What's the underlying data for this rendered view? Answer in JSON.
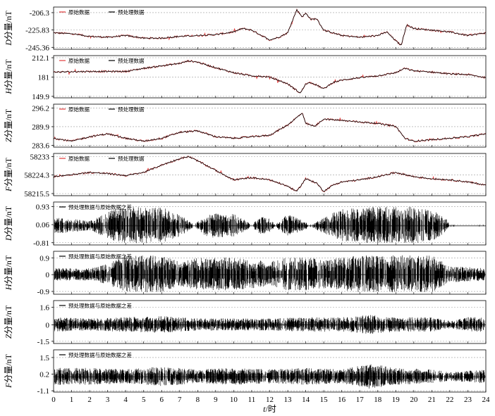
{
  "chart_data": [
    {
      "type": "line",
      "ylabel": "D分量/nT",
      "yticks": [
        -206.3,
        -225.83,
        -245.36
      ],
      "ylim": [
        -247.5,
        -200.0
      ],
      "grid": "horizontal dashed",
      "legend": [
        {
          "name": "原始数据",
          "color": "#e23b3b"
        },
        {
          "name": "预处理数据",
          "color": "#000000"
        }
      ],
      "series": [
        {
          "name": "原始数据",
          "color": "#e23b3b",
          "x": [
            0,
            1,
            2,
            3,
            4,
            5,
            6,
            7,
            8,
            9,
            10,
            10.5,
            11,
            12,
            12.5,
            13,
            13.5,
            13.8,
            14,
            14.3,
            14.6,
            15,
            16,
            17,
            18,
            18.5,
            19,
            19.3,
            19.6,
            20,
            21,
            22,
            23,
            24
          ],
          "values": [
            -229,
            -230,
            -233,
            -234,
            -232,
            -235,
            -235,
            -233,
            -232,
            -231,
            -228,
            -224,
            -226,
            -237,
            -234,
            -229,
            -203,
            -211,
            -207,
            -214,
            -213,
            -226,
            -232,
            -234,
            -232,
            -228,
            -238,
            -243,
            -220,
            -224,
            -226,
            -228,
            -232,
            -229
          ]
        },
        {
          "name": "预处理数据",
          "color": "#000000",
          "x": [
            0,
            1,
            2,
            3,
            4,
            5,
            6,
            7,
            8,
            9,
            10,
            10.5,
            11,
            12,
            12.5,
            13,
            13.5,
            13.8,
            14,
            14.3,
            14.6,
            15,
            16,
            17,
            18,
            18.5,
            19,
            19.3,
            19.6,
            20,
            21,
            22,
            23,
            24
          ],
          "values": [
            -229,
            -230,
            -233,
            -234,
            -232,
            -235,
            -235,
            -233,
            -232,
            -231,
            -228,
            -224,
            -226,
            -237,
            -234,
            -229,
            -203,
            -211,
            -207,
            -214,
            -213,
            -226,
            -232,
            -234,
            -232,
            -228,
            -238,
            -243,
            -220,
            -224,
            -226,
            -228,
            -232,
            -229
          ]
        }
      ]
    },
    {
      "type": "line",
      "ylabel": "H分量/nT",
      "yticks": [
        212.1,
        181.0,
        149.9
      ],
      "ylim": [
        147.5,
        215.5
      ],
      "grid": "horizontal dashed",
      "legend": [
        {
          "name": "原始数据",
          "color": "#e23b3b"
        },
        {
          "name": "预处理数据",
          "color": "#000000"
        }
      ],
      "series": [
        {
          "name": "原始数据",
          "color": "#e23b3b",
          "x": [
            0,
            2,
            4,
            5,
            6,
            7,
            7.5,
            8,
            9,
            10,
            11,
            12,
            13,
            13.7,
            14,
            14.3,
            14.6,
            15,
            15.5,
            16,
            17,
            18,
            19,
            19.5,
            20,
            21,
            22,
            23,
            24
          ],
          "values": [
            189,
            190,
            190,
            195,
            199,
            203,
            207,
            205,
            196,
            188,
            183,
            181,
            170,
            155,
            170,
            172,
            168,
            162,
            172,
            176,
            180,
            183,
            188,
            195,
            191,
            189,
            186,
            185,
            180
          ]
        },
        {
          "name": "预处理数据",
          "color": "#000000",
          "x": [
            0,
            2,
            4,
            5,
            6,
            7,
            7.5,
            8,
            9,
            10,
            11,
            12,
            13,
            13.7,
            14,
            14.3,
            14.6,
            15,
            15.5,
            16,
            17,
            18,
            19,
            19.5,
            20,
            21,
            22,
            23,
            24
          ],
          "values": [
            189,
            190,
            190,
            195,
            199,
            203,
            207,
            205,
            196,
            188,
            183,
            181,
            170,
            155,
            170,
            172,
            168,
            162,
            172,
            176,
            180,
            183,
            188,
            195,
            191,
            189,
            186,
            185,
            180
          ]
        }
      ]
    },
    {
      "type": "line",
      "ylabel": "Z分量/nT",
      "yticks": [
        296.2,
        289.9,
        283.6
      ],
      "ylim": [
        283.0,
        297.5
      ],
      "grid": "horizontal dashed",
      "legend": [
        {
          "name": "原始数据",
          "color": "#e23b3b"
        },
        {
          "name": "预处理数据",
          "color": "#000000"
        }
      ],
      "series": [
        {
          "name": "原始数据",
          "color": "#e23b3b",
          "x": [
            0,
            1,
            2,
            3,
            4,
            5,
            6,
            7,
            8,
            9,
            10,
            11,
            12,
            13,
            13.5,
            13.8,
            14,
            14.5,
            15,
            16,
            17,
            18,
            19,
            19.5,
            20,
            21,
            22,
            23,
            24
          ],
          "values": [
            286.0,
            285.0,
            286.5,
            287.5,
            286.0,
            285.0,
            286.0,
            288.0,
            288.5,
            286.5,
            286.0,
            286.5,
            287.0,
            290.5,
            293.0,
            294.5,
            291.0,
            290.0,
            292.5,
            292.0,
            291.5,
            291.0,
            290.0,
            286.0,
            285.0,
            285.5,
            286.0,
            286.5,
            287.5
          ]
        },
        {
          "name": "预处理数据",
          "color": "#000000",
          "x": [
            0,
            1,
            2,
            3,
            4,
            5,
            6,
            7,
            8,
            9,
            10,
            11,
            12,
            13,
            13.5,
            13.8,
            14,
            14.5,
            15,
            16,
            17,
            18,
            19,
            19.5,
            20,
            21,
            22,
            23,
            24
          ],
          "values": [
            286.0,
            285.0,
            286.5,
            287.5,
            286.0,
            285.0,
            286.0,
            288.0,
            288.5,
            286.5,
            286.0,
            286.5,
            287.0,
            290.5,
            293.0,
            294.5,
            291.0,
            290.0,
            292.5,
            292.0,
            291.5,
            291.0,
            290.0,
            286.0,
            285.0,
            285.5,
            286.0,
            286.5,
            287.5
          ]
        }
      ]
    },
    {
      "type": "line",
      "ylabel": "F分量/nT",
      "yticks": [
        58233.0,
        58224.3,
        58215.5
      ],
      "ylim": [
        58214.5,
        58234.5
      ],
      "grid": "horizontal dashed",
      "legend": [
        {
          "name": "原始数据",
          "color": "#e23b3b"
        },
        {
          "name": "预处理数据",
          "color": "#000000"
        }
      ],
      "series": [
        {
          "name": "原始数据",
          "color": "#e23b3b",
          "x": [
            0,
            1,
            2,
            3,
            4,
            5,
            6,
            7,
            7.5,
            8,
            9,
            10,
            11,
            12,
            13,
            13.5,
            14,
            14.3,
            14.6,
            15,
            15.5,
            16,
            17,
            18,
            19,
            20,
            21,
            22,
            23,
            24
          ],
          "values": [
            58223.5,
            58224.5,
            58225.5,
            58225.0,
            58224.0,
            58225.5,
            58229.0,
            58232.0,
            58233.0,
            58231.0,
            58226.5,
            58222.0,
            58223.0,
            58222.0,
            58219.0,
            58216.5,
            58222.5,
            58221.5,
            58220.5,
            58216.5,
            58219.5,
            58221.0,
            58222.0,
            58223.5,
            58225.5,
            58223.5,
            58222.5,
            58222.0,
            58221.0,
            58219.5
          ]
        },
        {
          "name": "预处理数据",
          "color": "#000000",
          "x": [
            0,
            1,
            2,
            3,
            4,
            5,
            6,
            7,
            7.5,
            8,
            9,
            10,
            11,
            12,
            13,
            13.5,
            14,
            14.3,
            14.6,
            15,
            15.5,
            16,
            17,
            18,
            19,
            20,
            21,
            22,
            23,
            24
          ],
          "values": [
            58223.5,
            58224.5,
            58225.5,
            58225.0,
            58224.0,
            58225.5,
            58229.0,
            58232.0,
            58233.0,
            58231.0,
            58226.5,
            58222.0,
            58223.0,
            58222.0,
            58219.0,
            58216.5,
            58222.5,
            58221.5,
            58220.5,
            58216.5,
            58219.5,
            58221.0,
            58222.0,
            58223.5,
            58225.5,
            58223.5,
            58222.5,
            58222.0,
            58221.0,
            58219.5
          ]
        }
      ]
    },
    {
      "type": "bar",
      "ylabel": "D分量/nT",
      "yticks": [
        0.93,
        0.06,
        -0.81
      ],
      "ylim": [
        -0.92,
        1.15
      ],
      "grid": "horizontal dashed",
      "legend": [
        {
          "name": "预处理数据与原始数据之差",
          "color": "#000000"
        }
      ],
      "amplitude_by_hour": [
        [
          0,
          0.35
        ],
        [
          1,
          0.3
        ],
        [
          2,
          0.2
        ],
        [
          3.5,
          0.75
        ],
        [
          4,
          0.8
        ],
        [
          5,
          0.8
        ],
        [
          6,
          0.8
        ],
        [
          7,
          0.5
        ],
        [
          7.8,
          0.05
        ],
        [
          8.5,
          0.5
        ],
        [
          9,
          0.55
        ],
        [
          10,
          0.5
        ],
        [
          10.5,
          0.3
        ],
        [
          11,
          0.05
        ],
        [
          11.5,
          0.4
        ],
        [
          12,
          0.3
        ],
        [
          12.3,
          0.05
        ],
        [
          13,
          0.5
        ],
        [
          13.6,
          0.3
        ],
        [
          14.3,
          0.05
        ],
        [
          15.5,
          0.55
        ],
        [
          16,
          0.7
        ],
        [
          17,
          0.75
        ],
        [
          18,
          0.8
        ],
        [
          19,
          0.8
        ],
        [
          20,
          0.8
        ],
        [
          21,
          0.7
        ],
        [
          21.8,
          0.3
        ],
        [
          22,
          0.05
        ],
        [
          24,
          0.05
        ]
      ]
    },
    {
      "type": "bar",
      "ylabel": "H分量/nT",
      "yticks": [
        0.9,
        0.0,
        -0.9
      ],
      "ylim": [
        -1.05,
        1.25
      ],
      "grid": "horizontal dashed",
      "legend": [
        {
          "name": "预处理数据与原始数据之差",
          "color": "#000000"
        }
      ],
      "amplitude_by_hour": [
        [
          0,
          0.3
        ],
        [
          2,
          0.3
        ],
        [
          3,
          0.5
        ],
        [
          4,
          0.9
        ],
        [
          5,
          0.9
        ],
        [
          6,
          0.9
        ],
        [
          7,
          0.6
        ],
        [
          8,
          0.8
        ],
        [
          9,
          0.8
        ],
        [
          10,
          0.8
        ],
        [
          11,
          0.7
        ],
        [
          12,
          0.6
        ],
        [
          13,
          0.8
        ],
        [
          14,
          0.8
        ],
        [
          15,
          0.7
        ],
        [
          16,
          0.8
        ],
        [
          17,
          0.9
        ],
        [
          18,
          0.9
        ],
        [
          19,
          0.9
        ],
        [
          20,
          0.9
        ],
        [
          21,
          0.9
        ],
        [
          22,
          0.4
        ],
        [
          23,
          0.35
        ],
        [
          24,
          0.3
        ]
      ]
    },
    {
      "type": "bar",
      "ylabel": "Z分量/nT",
      "yticks": [
        1.6,
        0.0,
        -1.5
      ],
      "ylim": [
        -1.7,
        2.2
      ],
      "grid": "horizontal dashed",
      "legend": [
        {
          "name": "预处理数据与原始数据之差",
          "color": "#000000"
        }
      ],
      "amplitude_by_hour": [
        [
          0,
          0.6
        ],
        [
          2,
          0.5
        ],
        [
          4,
          0.6
        ],
        [
          6,
          0.7
        ],
        [
          8,
          0.5
        ],
        [
          10,
          0.5
        ],
        [
          12,
          0.5
        ],
        [
          14,
          0.6
        ],
        [
          16,
          0.6
        ],
        [
          17.5,
          0.8
        ],
        [
          19,
          0.6
        ],
        [
          21,
          0.6
        ],
        [
          22,
          0.3
        ],
        [
          23,
          0.6
        ],
        [
          24,
          0.6
        ]
      ]
    },
    {
      "type": "bar",
      "ylabel": "F分量/nT",
      "yticks": [
        1.5,
        0.2,
        -1.1
      ],
      "ylim": [
        -1.2,
        2.1
      ],
      "grid": "horizontal dashed",
      "legend": [
        {
          "name": "预处理数据与原始数据之差",
          "color": "#000000"
        }
      ],
      "amplitude_by_hour": [
        [
          0,
          0.6
        ],
        [
          2,
          0.6
        ],
        [
          4,
          0.5
        ],
        [
          6,
          0.7
        ],
        [
          8,
          0.5
        ],
        [
          10,
          0.6
        ],
        [
          12,
          0.5
        ],
        [
          14,
          0.6
        ],
        [
          16,
          0.5
        ],
        [
          17.5,
          0.9
        ],
        [
          19,
          0.6
        ],
        [
          21,
          0.5
        ],
        [
          22,
          0.3
        ],
        [
          24,
          0.5
        ]
      ]
    }
  ],
  "x_axis": {
    "label_italic": "t",
    "label_rest": "/时",
    "ticks": [
      0,
      1,
      2,
      3,
      4,
      5,
      6,
      7,
      8,
      9,
      10,
      11,
      12,
      13,
      14,
      15,
      16,
      17,
      18,
      19,
      20,
      21,
      22,
      23,
      24
    ],
    "xlim": [
      0,
      24
    ]
  }
}
